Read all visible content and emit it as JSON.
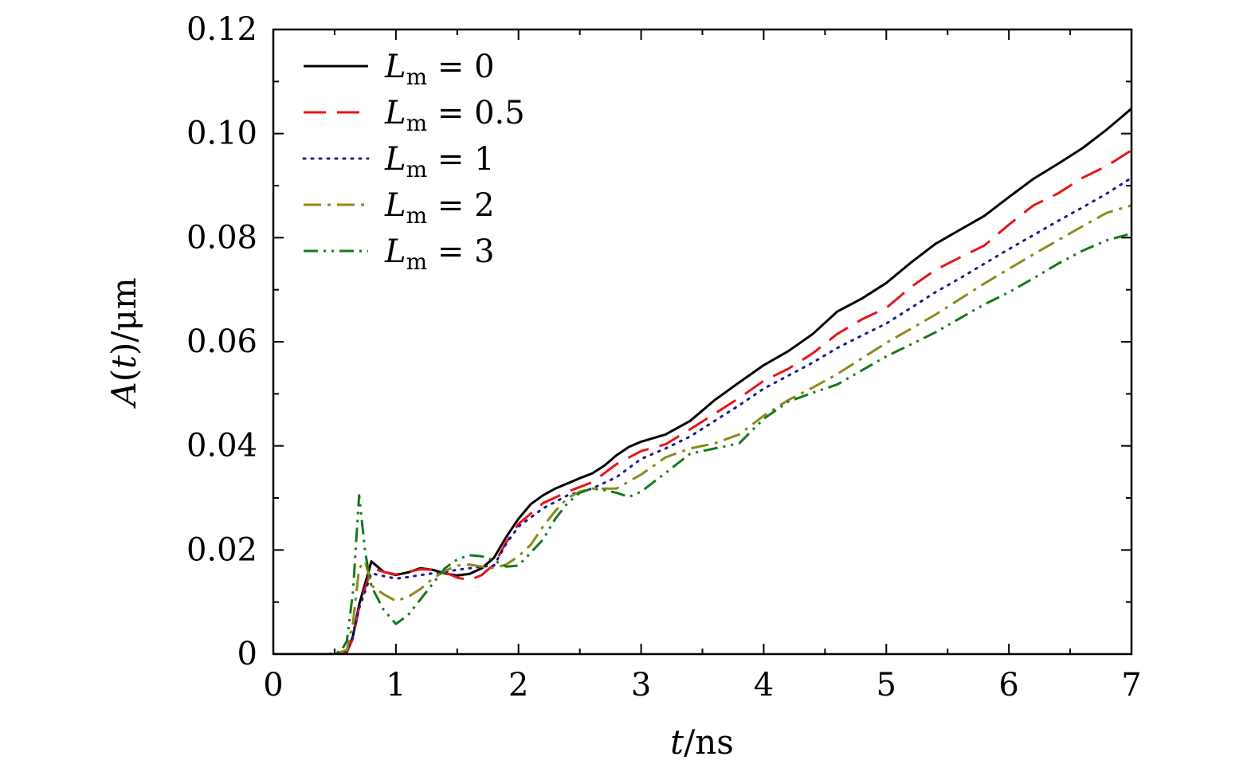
{
  "chart_data": {
    "type": "line",
    "xlabel": "t/ns",
    "ylabel": "A(t)/μm",
    "xlim": [
      0,
      7
    ],
    "ylim": [
      0,
      0.12
    ],
    "x_ticks": [
      0,
      1,
      2,
      3,
      4,
      5,
      6,
      7
    ],
    "x_tick_labels": [
      "0",
      "1",
      "2",
      "3",
      "4",
      "5",
      "6",
      "7"
    ],
    "y_ticks": [
      0,
      0.02,
      0.04,
      0.06,
      0.08,
      0.1,
      0.12
    ],
    "y_tick_labels": [
      "0",
      "0.02",
      "0.04",
      "0.06",
      "0.08",
      "0.10",
      "0.12"
    ],
    "grid": false,
    "legend_position": "top-left",
    "series": [
      {
        "name": "L_m = 0",
        "label": {
          "main": "L",
          "sub": "m",
          "rest": " = 0"
        },
        "color": "#000000",
        "dash": "solid",
        "x": [
          0,
          0.5,
          0.6,
          0.65,
          0.7,
          0.8,
          0.9,
          1.0,
          1.1,
          1.2,
          1.3,
          1.4,
          1.5,
          1.6,
          1.7,
          1.8,
          1.9,
          2.0,
          2.1,
          2.2,
          2.3,
          2.4,
          2.5,
          2.6,
          2.7,
          2.8,
          2.9,
          3.0,
          3.2,
          3.4,
          3.6,
          3.8,
          4.0,
          4.2,
          4.4,
          4.6,
          4.8,
          5.0,
          5.2,
          5.4,
          5.6,
          5.8,
          6.0,
          6.2,
          6.4,
          6.6,
          6.8,
          7.0
        ],
        "y": [
          0,
          0,
          0.0003,
          0.0035,
          0.0095,
          0.0178,
          0.0158,
          0.0152,
          0.0157,
          0.0165,
          0.0162,
          0.0155,
          0.0151,
          0.0154,
          0.0165,
          0.0185,
          0.0225,
          0.026,
          0.0288,
          0.0305,
          0.0318,
          0.0328,
          0.0338,
          0.0347,
          0.0362,
          0.0382,
          0.0398,
          0.0408,
          0.0422,
          0.0448,
          0.0488,
          0.0522,
          0.0555,
          0.0582,
          0.0615,
          0.0658,
          0.0683,
          0.0713,
          0.0752,
          0.0788,
          0.0815,
          0.0842,
          0.0878,
          0.0913,
          0.0942,
          0.0972,
          0.1008,
          0.1048
        ]
      },
      {
        "name": "L_m = 0.5",
        "label": {
          "main": "L",
          "sub": "m",
          "rest": " = 0.5"
        },
        "color": "#e8151a",
        "dash": "long-dash",
        "x": [
          0,
          0.5,
          0.6,
          0.65,
          0.7,
          0.8,
          0.9,
          1.0,
          1.1,
          1.2,
          1.3,
          1.4,
          1.5,
          1.6,
          1.7,
          1.8,
          1.9,
          2.0,
          2.2,
          2.4,
          2.6,
          2.8,
          3.0,
          3.2,
          3.4,
          3.6,
          3.8,
          4.0,
          4.2,
          4.4,
          4.6,
          4.8,
          5.0,
          5.2,
          5.4,
          5.6,
          5.8,
          6.0,
          6.2,
          6.4,
          6.6,
          6.8,
          7.0
        ],
        "y": [
          0,
          0,
          0.0004,
          0.003,
          0.009,
          0.0165,
          0.0158,
          0.0153,
          0.0158,
          0.0163,
          0.0162,
          0.0157,
          0.0147,
          0.0142,
          0.0152,
          0.0172,
          0.0215,
          0.025,
          0.029,
          0.0312,
          0.033,
          0.0365,
          0.039,
          0.0403,
          0.0432,
          0.0462,
          0.0492,
          0.0525,
          0.0548,
          0.0578,
          0.0615,
          0.0643,
          0.0665,
          0.0705,
          0.0738,
          0.0762,
          0.0785,
          0.0825,
          0.0862,
          0.0885,
          0.0915,
          0.0938,
          0.0968
        ]
      },
      {
        "name": "L_m = 1",
        "label": {
          "main": "L",
          "sub": "m",
          "rest": " = 1"
        },
        "color": "#1b1b8f",
        "dash": "dotted",
        "x": [
          0,
          0.5,
          0.6,
          0.65,
          0.7,
          0.8,
          0.9,
          1.0,
          1.1,
          1.2,
          1.3,
          1.4,
          1.5,
          1.6,
          1.7,
          1.8,
          1.9,
          2.0,
          2.2,
          2.4,
          2.6,
          2.8,
          3.0,
          3.2,
          3.4,
          3.6,
          3.8,
          4.0,
          4.2,
          4.4,
          4.6,
          4.8,
          5.0,
          5.2,
          5.4,
          5.6,
          5.8,
          6.0,
          6.2,
          6.4,
          6.6,
          6.8,
          7.0
        ],
        "y": [
          0,
          0,
          0.0005,
          0.0035,
          0.0088,
          0.0155,
          0.015,
          0.0145,
          0.0148,
          0.0152,
          0.0155,
          0.0158,
          0.0162,
          0.0165,
          0.0168,
          0.017,
          0.0212,
          0.0245,
          0.028,
          0.0305,
          0.0318,
          0.034,
          0.0375,
          0.0395,
          0.0418,
          0.0448,
          0.0478,
          0.051,
          0.0535,
          0.056,
          0.0588,
          0.0612,
          0.0635,
          0.0665,
          0.0695,
          0.0722,
          0.075,
          0.0778,
          0.0805,
          0.0832,
          0.0858,
          0.0885,
          0.0915
        ]
      },
      {
        "name": "L_m = 2",
        "label": {
          "main": "L",
          "sub": "m",
          "rest": " = 2"
        },
        "color": "#8c8a1c",
        "dash": "dash-dot",
        "x": [
          0,
          0.5,
          0.6,
          0.65,
          0.7,
          0.75,
          0.8,
          0.9,
          1.0,
          1.1,
          1.2,
          1.3,
          1.4,
          1.5,
          1.6,
          1.7,
          1.8,
          1.9,
          2.0,
          2.1,
          2.2,
          2.3,
          2.4,
          2.5,
          2.6,
          2.8,
          3.0,
          3.2,
          3.4,
          3.6,
          3.8,
          4.0,
          4.2,
          4.4,
          4.6,
          4.8,
          5.0,
          5.2,
          5.4,
          5.6,
          5.8,
          6.0,
          6.2,
          6.4,
          6.6,
          6.8,
          7.0
        ],
        "y": [
          0,
          0,
          0.0008,
          0.006,
          0.0165,
          0.0178,
          0.0132,
          0.0115,
          0.0102,
          0.011,
          0.0125,
          0.0145,
          0.016,
          0.017,
          0.0172,
          0.0168,
          0.0165,
          0.0172,
          0.0188,
          0.021,
          0.0245,
          0.0275,
          0.03,
          0.0312,
          0.0318,
          0.0318,
          0.0345,
          0.0378,
          0.0395,
          0.0405,
          0.0422,
          0.0458,
          0.0488,
          0.0512,
          0.0538,
          0.0568,
          0.0598,
          0.0625,
          0.0652,
          0.0682,
          0.0712,
          0.074,
          0.0768,
          0.0795,
          0.0822,
          0.0848,
          0.0862
        ]
      },
      {
        "name": "L_m = 3",
        "label": {
          "main": "L",
          "sub": "m",
          "rest": " = 3"
        },
        "color": "#127a1c",
        "dash": "dash-dot-dot",
        "x": [
          0,
          0.45,
          0.55,
          0.6,
          0.65,
          0.7,
          0.75,
          0.8,
          0.9,
          1.0,
          1.1,
          1.2,
          1.3,
          1.4,
          1.5,
          1.6,
          1.7,
          1.8,
          1.9,
          2.0,
          2.1,
          2.2,
          2.3,
          2.4,
          2.5,
          2.6,
          2.7,
          2.8,
          2.9,
          3.0,
          3.2,
          3.4,
          3.6,
          3.8,
          4.0,
          4.2,
          4.4,
          4.6,
          4.8,
          5.0,
          5.2,
          5.4,
          5.6,
          5.8,
          6.0,
          6.2,
          6.4,
          6.6,
          6.8,
          7.0
        ],
        "y": [
          0,
          0,
          0.0005,
          0.0025,
          0.012,
          0.0305,
          0.0195,
          0.013,
          0.0085,
          0.0058,
          0.0075,
          0.0105,
          0.0135,
          0.0165,
          0.0182,
          0.019,
          0.0188,
          0.018,
          0.0168,
          0.017,
          0.0195,
          0.022,
          0.026,
          0.029,
          0.031,
          0.0318,
          0.0315,
          0.031,
          0.0302,
          0.0312,
          0.0348,
          0.0385,
          0.0395,
          0.0405,
          0.0452,
          0.0485,
          0.0502,
          0.0518,
          0.0545,
          0.0572,
          0.0595,
          0.0618,
          0.0645,
          0.0672,
          0.0695,
          0.0722,
          0.075,
          0.0775,
          0.0795,
          0.0808
        ]
      }
    ]
  }
}
